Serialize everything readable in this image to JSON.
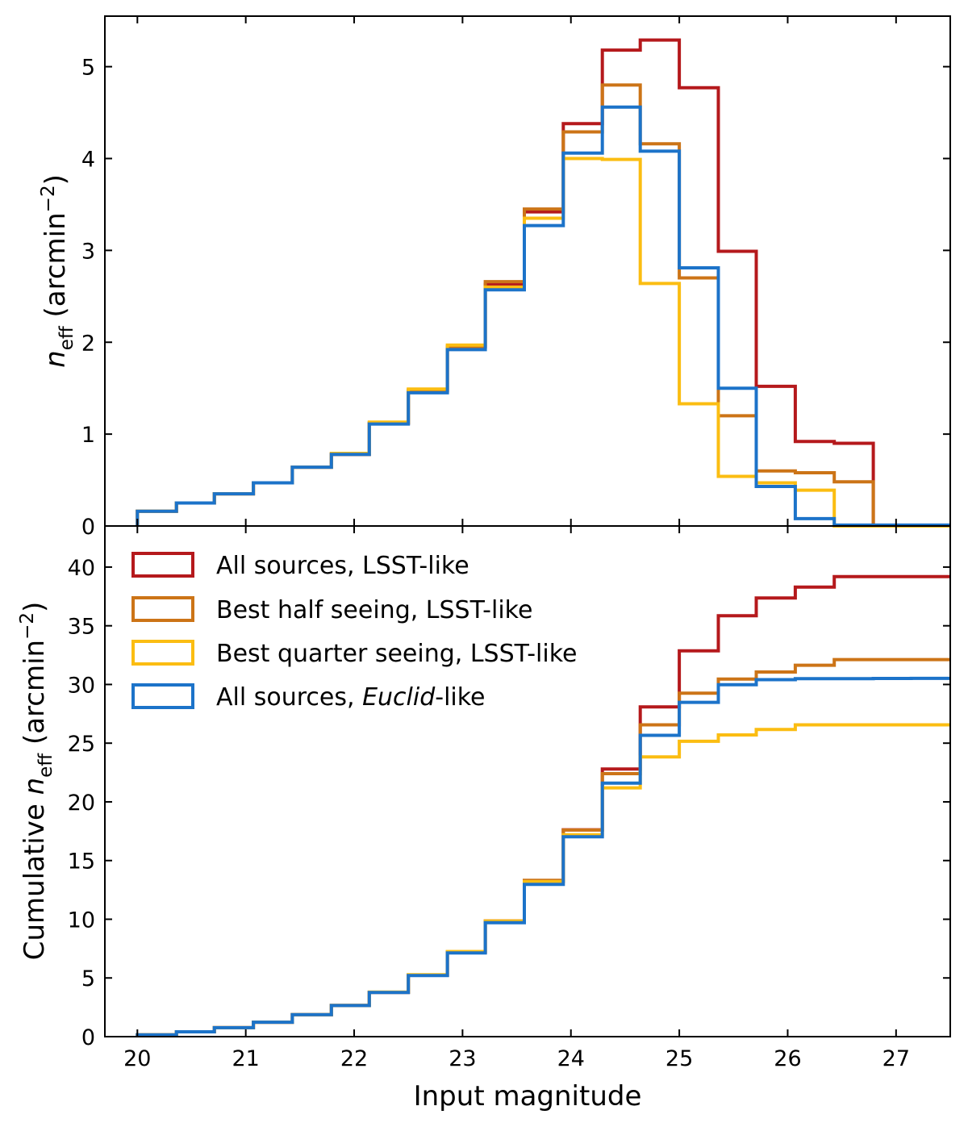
{
  "figure": {
    "xlabel": "Input magnitude",
    "top_ylabel": {
      "italic": "n",
      "sub": "eff",
      "unit_pre": " (arcmin",
      "sup": "−2",
      "unit_post": ")"
    },
    "bottom_ylabel": {
      "pre": "Cumulative ",
      "italic": "n",
      "sub": "eff",
      "unit_pre": " (arcmin",
      "sup": "−2",
      "unit_post": ")"
    }
  },
  "legend": {
    "placement": "upper-left of bottom panel",
    "items": [
      {
        "text": "All sources, LSST-like",
        "color": "#b5191c"
      },
      {
        "text": "Best half seeing, LSST-like",
        "color": "#cc7417"
      },
      {
        "text": "Best quarter seeing, LSST-like",
        "color": "#fbbd12"
      },
      {
        "pre": "All sources, ",
        "italic": "Euclid",
        "post": "-like",
        "color": "#1c73c9"
      }
    ]
  },
  "chart_data": [
    {
      "type": "line",
      "style": "step histogram",
      "panel": "top",
      "ylabel": "n_eff (arcmin^-2)",
      "xlim": [
        19.7,
        27.5
      ],
      "ylim": [
        0,
        5.55
      ],
      "xticks": [
        "20",
        "21",
        "22",
        "23",
        "24",
        "25",
        "26",
        "27"
      ],
      "yticks": [
        "0",
        "1",
        "2",
        "3",
        "4",
        "5"
      ],
      "bin_edges": [
        20.0,
        20.36,
        20.71,
        21.07,
        21.43,
        21.79,
        22.14,
        22.5,
        22.86,
        23.21,
        23.57,
        23.93,
        24.29,
        24.64,
        25.0,
        25.36,
        25.71,
        26.07,
        26.43,
        26.79,
        27.14,
        27.5
      ],
      "series": [
        {
          "color": "#b5191c",
          "values": [
            0.16,
            0.25,
            0.35,
            0.47,
            0.64,
            0.78,
            1.12,
            1.47,
            1.95,
            2.63,
            3.42,
            4.38,
            5.18,
            5.29,
            4.77,
            2.99,
            1.52,
            0.92,
            0.9,
            0.0,
            0.0
          ]
        },
        {
          "color": "#cc7417",
          "values": [
            0.16,
            0.25,
            0.35,
            0.47,
            0.64,
            0.78,
            1.12,
            1.48,
            1.95,
            2.66,
            3.45,
            4.29,
            4.8,
            4.16,
            2.7,
            1.2,
            0.6,
            0.58,
            0.48,
            0.0,
            0.0
          ]
        },
        {
          "color": "#fbbd12",
          "values": [
            0.16,
            0.25,
            0.35,
            0.47,
            0.64,
            0.79,
            1.13,
            1.49,
            1.97,
            2.6,
            3.35,
            4.0,
            3.99,
            2.64,
            1.33,
            0.54,
            0.47,
            0.39,
            0.0,
            0.0,
            0.0
          ]
        },
        {
          "color": "#1c73c9",
          "values": [
            0.16,
            0.25,
            0.35,
            0.47,
            0.64,
            0.78,
            1.11,
            1.45,
            1.92,
            2.57,
            3.27,
            4.06,
            4.56,
            4.08,
            2.81,
            1.5,
            0.43,
            0.08,
            0.01,
            0.01,
            0.01
          ]
        }
      ]
    },
    {
      "type": "line",
      "style": "step cumulative histogram",
      "panel": "bottom",
      "ylabel": "Cumulative n_eff (arcmin^-2)",
      "xlabel": "Input magnitude",
      "xlim": [
        19.7,
        27.5
      ],
      "ylim": [
        0,
        43.5
      ],
      "xticks": [
        "20",
        "21",
        "22",
        "23",
        "24",
        "25",
        "26",
        "27"
      ],
      "yticks": [
        "0",
        "5",
        "10",
        "15",
        "20",
        "25",
        "30",
        "35",
        "40"
      ],
      "bin_edges": [
        20.0,
        20.36,
        20.71,
        21.07,
        21.43,
        21.79,
        22.14,
        22.5,
        22.86,
        23.21,
        23.57,
        23.93,
        24.29,
        24.64,
        25.0,
        25.36,
        25.71,
        26.07,
        26.43,
        26.79,
        27.14,
        27.5
      ],
      "series": [
        {
          "color": "#b5191c",
          "values": [
            0.16,
            0.41,
            0.76,
            1.23,
            1.87,
            2.65,
            3.77,
            5.24,
            7.19,
            9.82,
            13.24,
            17.62,
            22.8,
            28.09,
            32.86,
            35.85,
            37.37,
            38.29,
            39.19,
            39.19,
            39.19
          ]
        },
        {
          "color": "#cc7417",
          "values": [
            0.16,
            0.41,
            0.76,
            1.23,
            1.87,
            2.65,
            3.77,
            5.25,
            7.2,
            9.86,
            13.31,
            17.6,
            22.4,
            26.56,
            29.26,
            30.46,
            31.06,
            31.64,
            32.12,
            32.12,
            32.12
          ]
        },
        {
          "color": "#fbbd12",
          "values": [
            0.16,
            0.41,
            0.76,
            1.23,
            1.87,
            2.66,
            3.79,
            5.28,
            7.25,
            9.85,
            13.2,
            17.2,
            21.19,
            23.83,
            25.16,
            25.7,
            26.17,
            26.56,
            26.56,
            26.56,
            26.56
          ]
        },
        {
          "color": "#1c73c9",
          "values": [
            0.16,
            0.41,
            0.76,
            1.23,
            1.87,
            2.65,
            3.76,
            5.21,
            7.13,
            9.7,
            12.97,
            17.03,
            21.59,
            25.67,
            28.48,
            29.98,
            30.41,
            30.49,
            30.5,
            30.51,
            30.52
          ]
        }
      ]
    }
  ]
}
